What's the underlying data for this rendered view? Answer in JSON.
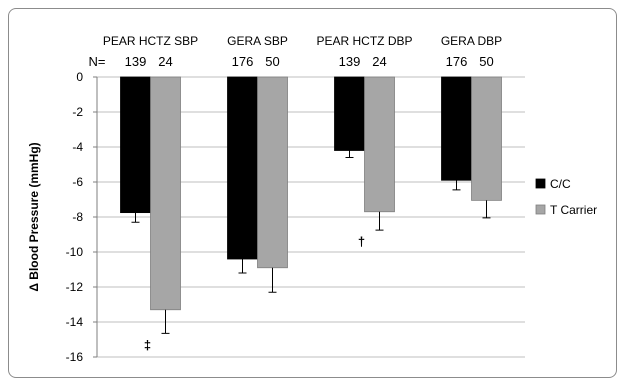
{
  "chart_data": {
    "type": "bar",
    "categories": [
      "PEAR HCTZ SBP",
      "GERA SBP",
      "PEAR HCTZ DBP",
      "GERA DBP"
    ],
    "n_prefix": "N=",
    "n_counts": [
      [
        "139",
        "24"
      ],
      [
        "176",
        "50"
      ],
      [
        "139",
        "24"
      ],
      [
        "176",
        "50"
      ]
    ],
    "series": [
      {
        "name": "C/C",
        "color": "#000000",
        "values": [
          -7.75,
          -10.4,
          -4.2,
          -5.9
        ],
        "errors": [
          0.55,
          0.8,
          0.4,
          0.55
        ]
      },
      {
        "name": "T Carrier",
        "color": "#a6a6a6",
        "values": [
          -13.3,
          -10.9,
          -7.7,
          -7.05
        ],
        "errors": [
          1.35,
          1.4,
          1.05,
          1.0
        ]
      }
    ],
    "annotations": [
      {
        "text": "‡",
        "category_index": 0
      },
      {
        "text": "†",
        "category_index": 2
      }
    ],
    "ylabel": "Δ Blood Pressure  (mmHg)",
    "xlabel": "",
    "ylim": [
      -16,
      0
    ],
    "yticks": [
      0,
      -2,
      -4,
      -6,
      -8,
      -10,
      -12,
      -14,
      -16
    ],
    "grid": true,
    "legend_position": "right"
  }
}
